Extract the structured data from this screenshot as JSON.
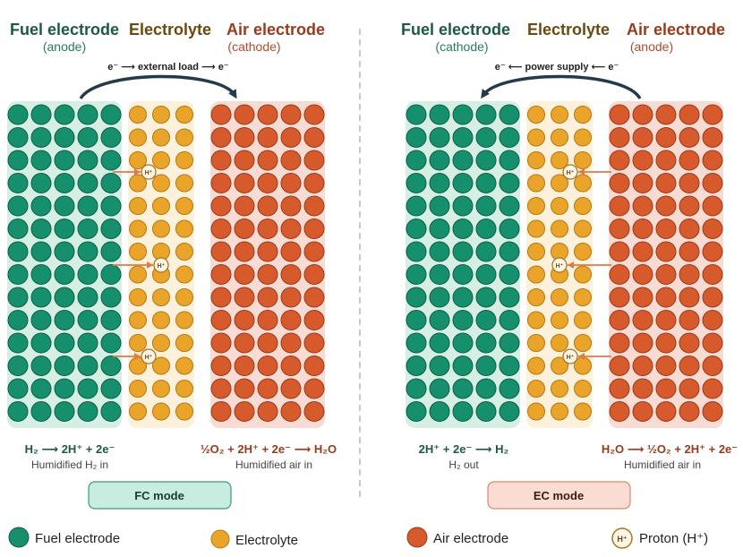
{
  "colors": {
    "fuel": "#16906c",
    "electrolyte": "#eba42a",
    "air": "#d75a2c",
    "fuel_bg": "#d6efe5",
    "electrolyte_bg": "#fdf1dc",
    "air_bg": "#f8dcd4",
    "fuel_text": "#1c5a44",
    "electrolyte_text": "#6b4a10",
    "air_text": "#9a3a1c",
    "arrow": "#223a4a",
    "proton_arrow": "#e07a4a"
  },
  "fc_panel": {
    "fuel_title": "Fuel electrode",
    "fuel_sub": "(anode)",
    "electrolyte_title": "Electrolyte",
    "air_title": "Air electrode",
    "air_sub": "(cathode)",
    "circuit_label": "e⁻ ⟶ external load ⟶ e⁻",
    "fuel_reaction": "H₂ ⟶ 2H⁺ + 2e⁻",
    "fuel_note": "Humidified H₂ in",
    "air_reaction": "½O₂ + 2H⁺ + 2e⁻ ⟶ H₂O",
    "air_note": "Humidified air in",
    "mode_label": "FC mode",
    "mode_bg": "#c9ece0",
    "mode_border": "#3c9a7a"
  },
  "ec_panel": {
    "fuel_title": "Fuel electrode",
    "fuel_sub": "(cathode)",
    "electrolyte_title": "Electrolyte",
    "air_title": "Air electrode",
    "air_sub": "(anode)",
    "circuit_label": "e⁻ ⟵ power supply ⟵ e⁻",
    "fuel_reaction": "2H⁺ + 2e⁻ ⟶ H₂",
    "fuel_note": "H₂ out",
    "air_reaction": "H₂O ⟶ ½O₂ + 2H⁺ + 2e⁻",
    "air_note": "Humidified air in",
    "mode_label": "EC mode",
    "mode_bg": "#fadcd2",
    "mode_border": "#d98a6e"
  },
  "proton_label": "H⁺",
  "legend": {
    "fuel": "Fuel electrode",
    "electrolyte": "Electrolyte",
    "air": "Air electrode",
    "proton": "Proton (H⁺)"
  }
}
